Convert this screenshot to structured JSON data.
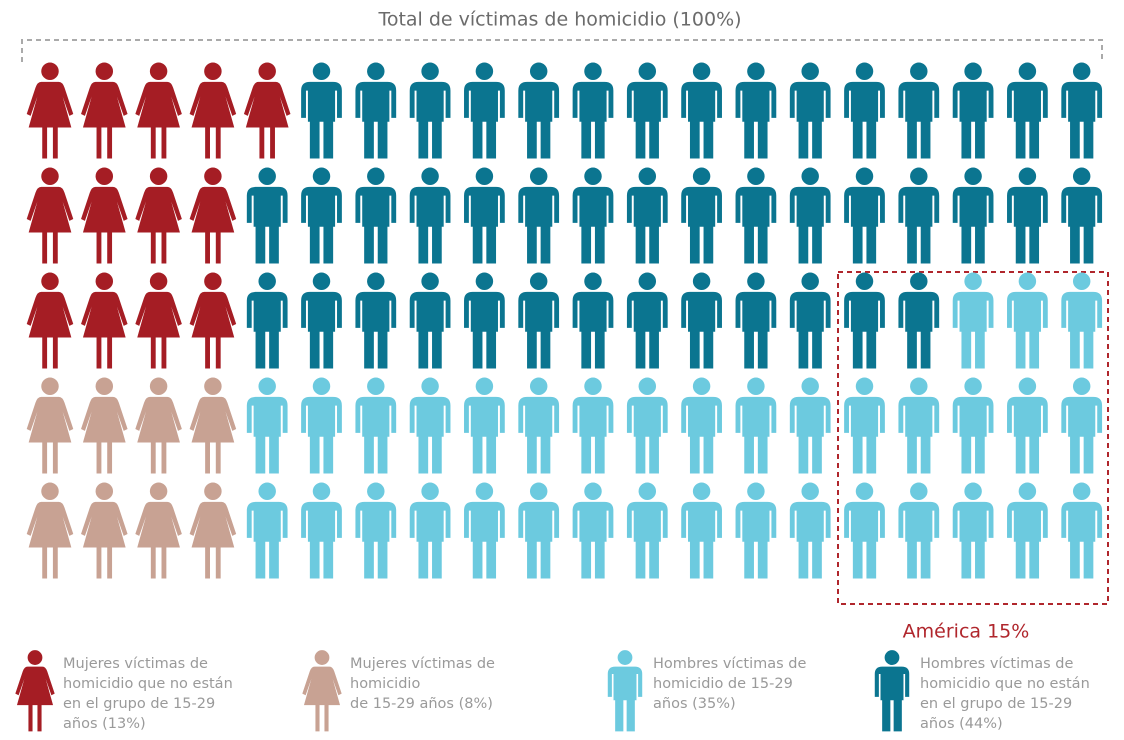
{
  "chart_data": {
    "type": "pictograph",
    "title": "Total de víctimas de homicidio (100%)",
    "annotation": "América 15%",
    "series": [
      {
        "name": "Mujeres víctimas de\nhomicidio que no están\nen el grupo de 15-29\naños (13%)",
        "color": "#a51d24",
        "shape": "woman",
        "value": 13
      },
      {
        "name": "Mujeres víctimas de\nhomicidio\nde 15-29 años (8%)",
        "color": "#c8a293",
        "shape": "woman",
        "value": 8
      },
      {
        "name": "Hombres víctimas de\nhomicidio de 15-29\naños (35%)",
        "color": "#6ccadf",
        "shape": "man",
        "value": 35
      },
      {
        "name": "Hombres víctimas de\nhomicidio que no están\nen el grupo de 15-29\naños (44%)",
        "color": "#0b7590",
        "shape": "man",
        "value": 44
      }
    ]
  }
}
